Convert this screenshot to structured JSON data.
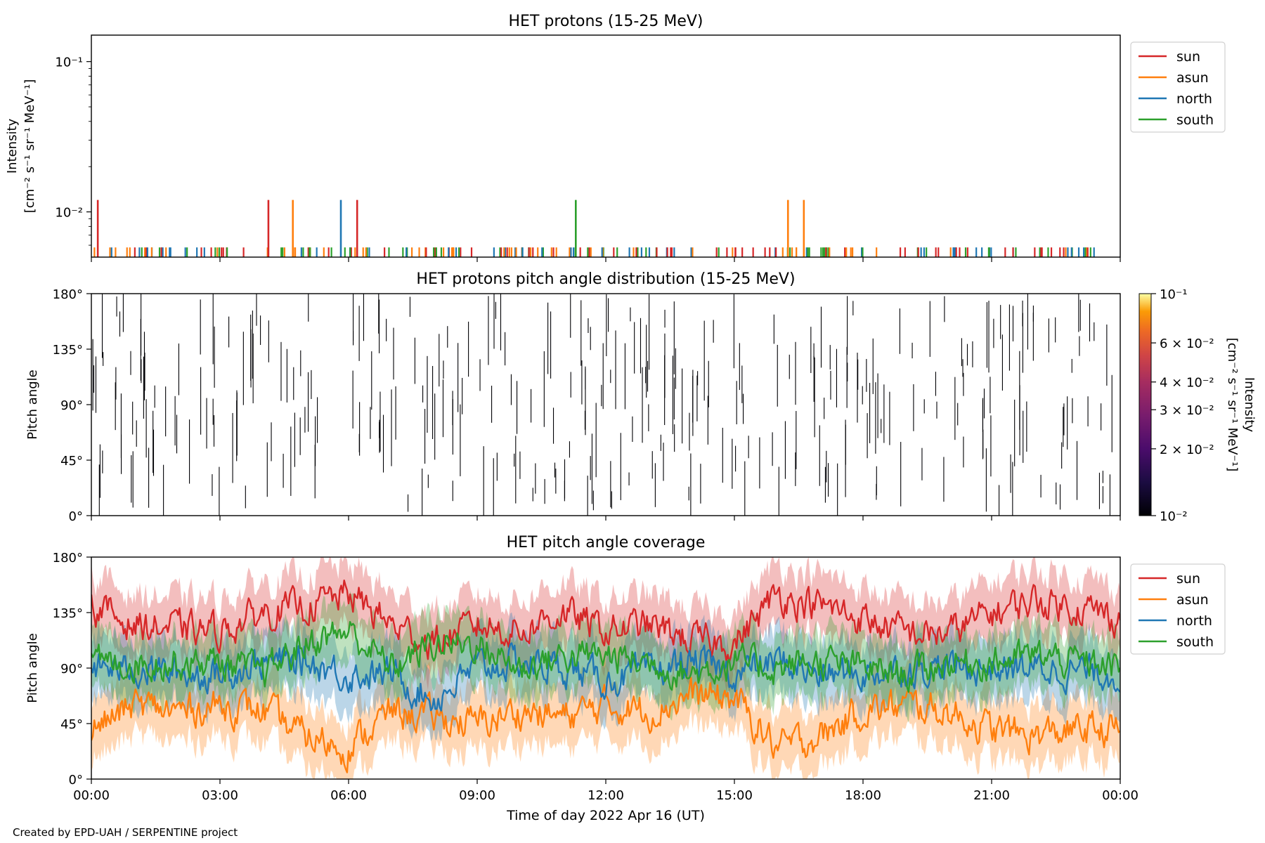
{
  "footer": "Created by EPD-UAH / SERPENTINE project",
  "xlabel": "Time of day 2022 Apr 16 (UT)",
  "colors": {
    "sun": "#d62728",
    "asun": "#ff7f0e",
    "north": "#1f77b4",
    "south": "#2ca02c"
  },
  "chart_data": [
    {
      "type": "line",
      "title": "HET protons (15-25 MeV)",
      "ylabel_line1": "Intensity",
      "ylabel_line2": "[cm⁻² s⁻¹ sr⁻¹ MeV⁻¹]",
      "y_scale": "log",
      "ylim": [
        0.005,
        0.15
      ],
      "y_ticks": [
        {
          "value": 0.1,
          "label": "10⁻¹"
        },
        {
          "value": 0.01,
          "label": "10⁻²"
        }
      ],
      "x_ticks": [
        "00:00",
        "03:00",
        "06:00",
        "09:00",
        "12:00",
        "15:00",
        "18:00",
        "21:00",
        "00:00"
      ],
      "xlim_hours": [
        0,
        24
      ],
      "legend": {
        "placement": "upper right outside",
        "entries": [
          "sun",
          "asun",
          "north",
          "south"
        ]
      },
      "baseline_level": 0.0058,
      "spike_level": 0.012,
      "spikes": [
        {
          "series": "sun",
          "hour": 0.15
        },
        {
          "series": "sun",
          "hour": 4.13
        },
        {
          "series": "asun",
          "hour": 4.7
        },
        {
          "series": "north",
          "hour": 5.82
        },
        {
          "series": "sun",
          "hour": 6.2
        },
        {
          "series": "south",
          "hour": 11.3
        },
        {
          "series": "asun",
          "hour": 16.25
        },
        {
          "series": "asun",
          "hour": 16.62
        }
      ]
    },
    {
      "type": "heatmap",
      "title": "HET protons pitch angle distribution (15-25 MeV)",
      "ylabel": "Pitch angle",
      "ylim": [
        0,
        180
      ],
      "y_ticks": [
        "0°",
        "45°",
        "90°",
        "135°",
        "180°"
      ],
      "colorbar": {
        "label_line1": "Intensity",
        "label_line2": "[cm⁻² s⁻¹ sr⁻¹ MeV⁻¹]",
        "scale": "log",
        "range": [
          0.01,
          0.1
        ],
        "colormap": "inferno",
        "ticks": [
          {
            "value": 0.1,
            "label": "10⁻¹"
          },
          {
            "value": 0.06,
            "label": "6 × 10⁻²"
          },
          {
            "value": 0.04,
            "label": "4 × 10⁻²"
          },
          {
            "value": 0.03,
            "label": "3 × 10⁻²"
          },
          {
            "value": 0.02,
            "label": "2 × 10⁻²"
          },
          {
            "value": 0.01,
            "label": "10⁻²"
          }
        ]
      }
    },
    {
      "type": "area",
      "title": "HET pitch angle coverage",
      "ylabel": "Pitch angle",
      "ylim": [
        0,
        180
      ],
      "y_ticks": [
        "0°",
        "45°",
        "90°",
        "135°",
        "180°"
      ],
      "x_ticks": [
        "00:00",
        "03:00",
        "06:00",
        "09:00",
        "12:00",
        "15:00",
        "18:00",
        "21:00",
        "00:00"
      ],
      "legend": {
        "placement": "upper right outside",
        "entries": [
          "sun",
          "asun",
          "north",
          "south"
        ]
      },
      "band_halfwidth_deg": 25,
      "hours": [
        0,
        1,
        2,
        3,
        4,
        5,
        6,
        7,
        8,
        9,
        10,
        11,
        12,
        13,
        14,
        15,
        16,
        17,
        18,
        19,
        20,
        21,
        22,
        23,
        24
      ],
      "series": [
        {
          "name": "sun",
          "values": [
            140,
            125,
            122,
            120,
            135,
            140,
            150,
            125,
            110,
            125,
            120,
            135,
            120,
            125,
            112,
            110,
            150,
            140,
            130,
            118,
            118,
            135,
            145,
            140,
            130
          ]
        },
        {
          "name": "asun",
          "values": [
            40,
            60,
            55,
            60,
            55,
            35,
            25,
            55,
            50,
            45,
            55,
            50,
            60,
            55,
            68,
            65,
            25,
            35,
            55,
            60,
            55,
            40,
            35,
            40,
            40
          ]
        },
        {
          "name": "north",
          "values": [
            90,
            90,
            85,
            85,
            95,
            95,
            85,
            85,
            65,
            90,
            95,
            90,
            80,
            85,
            95,
            85,
            95,
            85,
            85,
            90,
            90,
            90,
            90,
            88,
            85
          ]
        },
        {
          "name": "south",
          "values": [
            92,
            95,
            95,
            95,
            85,
            110,
            120,
            90,
            110,
            110,
            90,
            100,
            100,
            95,
            85,
            95,
            90,
            95,
            90,
            85,
            95,
            95,
            100,
            95,
            90
          ]
        }
      ]
    }
  ]
}
